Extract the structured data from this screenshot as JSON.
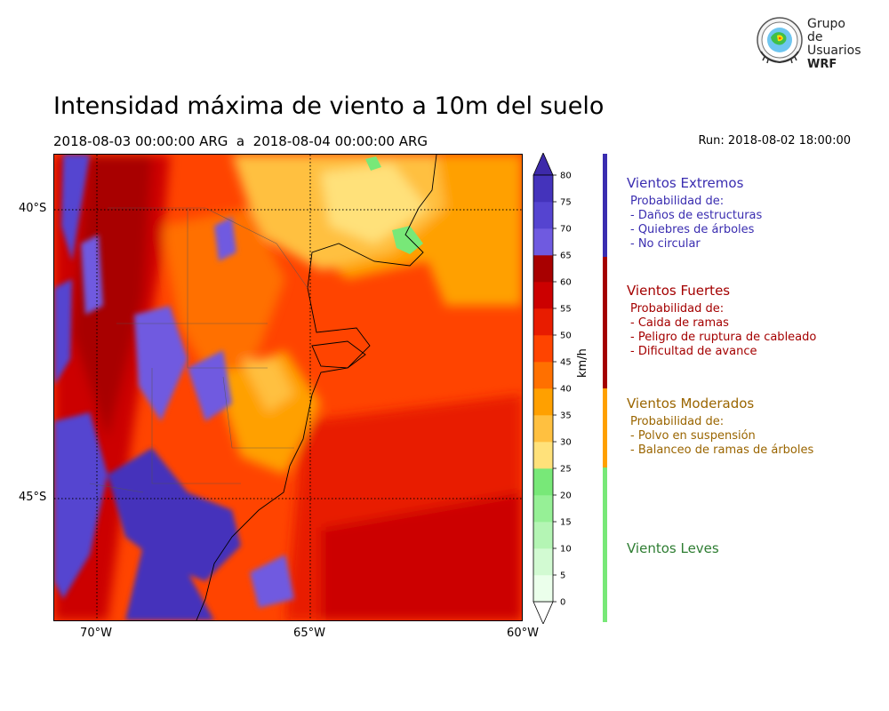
{
  "header": {
    "title": "Intensidad máxima de viento a 10m del suelo",
    "subtitle": "2018-08-03 00:00:00 ARG  a  2018-08-04 00:00:00 ARG",
    "run": "Run: 2018-08-02 18:00:00"
  },
  "logo": {
    "line1": "Grupo de",
    "line2": "Usuarios",
    "line3": "WRF",
    "seal_text": "Grupo de Usuarios WRF"
  },
  "map": {
    "lat_labels": [
      "40°S",
      "45°S"
    ],
    "lon_labels": [
      "70°W",
      "65°W",
      "60°W"
    ]
  },
  "colorbar": {
    "unit": "km/h",
    "ticks": [
      "0",
      "5",
      "10",
      "15",
      "20",
      "25",
      "30",
      "35",
      "40",
      "45",
      "50",
      "55",
      "60",
      "65",
      "70",
      "75",
      "80"
    ],
    "colors": [
      "#ebffeb",
      "#d2fad2",
      "#b4f5b4",
      "#96f096",
      "#78e878",
      "#ffe17a",
      "#ffc040",
      "#ffa000",
      "#ff7000",
      "#ff4400",
      "#e81c00",
      "#cc0000",
      "#a80000",
      "#6f5ae0",
      "#5544d0",
      "#4433bb"
    ],
    "over_color": "#3d2aaa",
    "under_color": "#ffffff"
  },
  "categories": [
    {
      "title": "Vientos Extremos",
      "color": "#3a2db0",
      "bar_color": "#3a2db0",
      "prob_label": "Probabilidad de:",
      "items": [
        "- Daños de estructuras",
        "- Quiebres de árboles",
        "- No circular"
      ]
    },
    {
      "title": "Vientos Fuertes",
      "color": "#a40000",
      "bar_color": "#a40000",
      "prob_label": "Probabilidad de:",
      "items": [
        "- Caida de ramas",
        "- Peligro de ruptura de cableado",
        "- Dificultad de avance"
      ]
    },
    {
      "title": "Vientos Moderados",
      "color": "#9a6500",
      "bar_color": "#ffa000",
      "prob_label": "Probabilidad de:",
      "items": [
        "- Polvo en suspensión",
        "- Balanceo de ramas de árboles"
      ]
    },
    {
      "title": "Vientos Leves",
      "color": "#2e7d32",
      "bar_color": "#78e878",
      "prob_label": "",
      "items": []
    }
  ]
}
